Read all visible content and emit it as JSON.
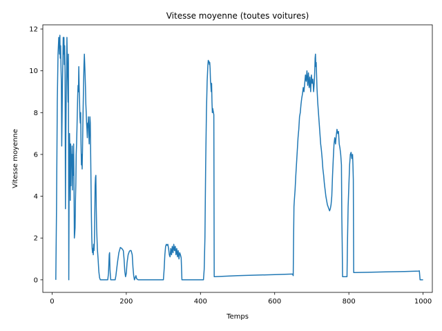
{
  "chart_data": {
    "type": "line",
    "title": "Vitesse moyenne (toutes voitures)",
    "xlabel": "Temps",
    "ylabel": "Vitesse moyenne",
    "xlim": [
      -25,
      1025
    ],
    "ylim": [
      -0.6,
      12.2
    ],
    "x_ticks": [
      0,
      200,
      400,
      600,
      800,
      1000
    ],
    "x_tick_labels": [
      "0",
      "200",
      "400",
      "600",
      "800",
      "1000"
    ],
    "y_ticks": [
      0,
      2,
      4,
      6,
      8,
      10,
      12
    ],
    "y_tick_labels": [
      "0",
      "2",
      "4",
      "6",
      "8",
      "10",
      "12"
    ],
    "grid": false,
    "line_color": "#1f77b4",
    "series": [
      {
        "points": [
          [
            10,
            0.0
          ],
          [
            12,
            3.5
          ],
          [
            14,
            8.5
          ],
          [
            16,
            10.8
          ],
          [
            18,
            11.6
          ],
          [
            19,
            11.5
          ],
          [
            20,
            10.8
          ],
          [
            21,
            11.7
          ],
          [
            22,
            10.6
          ],
          [
            23,
            11.2
          ],
          [
            24,
            10.2
          ],
          [
            25,
            9.4
          ],
          [
            26,
            6.4
          ],
          [
            27,
            7.8
          ],
          [
            28,
            9.5
          ],
          [
            29,
            10.5
          ],
          [
            30,
            11.6
          ],
          [
            31,
            10.8
          ],
          [
            32,
            11.6
          ],
          [
            33,
            10.3
          ],
          [
            34,
            11.2
          ],
          [
            35,
            9.8
          ],
          [
            36,
            3.4
          ],
          [
            37,
            6.5
          ],
          [
            38,
            8.5
          ],
          [
            39,
            9.8
          ],
          [
            40,
            11.6
          ],
          [
            41,
            10.4
          ],
          [
            42,
            9.5
          ],
          [
            43,
            8.5
          ],
          [
            44,
            10.8
          ],
          [
            45,
            0.0
          ],
          [
            46,
            5.0
          ],
          [
            47,
            7.0
          ],
          [
            48,
            6.0
          ],
          [
            49,
            3.8
          ],
          [
            50,
            6.5
          ],
          [
            51,
            4.5
          ],
          [
            52,
            6.0
          ],
          [
            53,
            5.5
          ],
          [
            54,
            6.4
          ],
          [
            55,
            4.3
          ],
          [
            56,
            6.0
          ],
          [
            57,
            5.0
          ],
          [
            58,
            6.5
          ],
          [
            59,
            4.8
          ],
          [
            60,
            2.0
          ],
          [
            61,
            2.2
          ],
          [
            62,
            2.5
          ],
          [
            63,
            3.8
          ],
          [
            64,
            4.6
          ],
          [
            65,
            6.0
          ],
          [
            66,
            6.5
          ],
          [
            67,
            7.2
          ],
          [
            68,
            8.0
          ],
          [
            69,
            8.8
          ],
          [
            70,
            9.3
          ],
          [
            71,
            9.0
          ],
          [
            72,
            10.2
          ],
          [
            73,
            9.2
          ],
          [
            74,
            8.6
          ],
          [
            75,
            7.8
          ],
          [
            76,
            7.5
          ],
          [
            77,
            8.0
          ],
          [
            78,
            6.5
          ],
          [
            79,
            5.5
          ],
          [
            80,
            6.0
          ],
          [
            81,
            5.3
          ],
          [
            82,
            6.2
          ],
          [
            83,
            7.5
          ],
          [
            84,
            8.5
          ],
          [
            85,
            9.5
          ],
          [
            86,
            10.3
          ],
          [
            87,
            10.8
          ],
          [
            88,
            10.3
          ],
          [
            89,
            9.8
          ],
          [
            90,
            9.2
          ],
          [
            91,
            8.4
          ],
          [
            92,
            8.0
          ],
          [
            93,
            7.5
          ],
          [
            94,
            7.2
          ],
          [
            95,
            6.8
          ],
          [
            96,
            7.5
          ],
          [
            97,
            7.3
          ],
          [
            98,
            7.8
          ],
          [
            99,
            7.0
          ],
          [
            100,
            6.5
          ],
          [
            101,
            7.2
          ],
          [
            102,
            7.8
          ],
          [
            103,
            7.5
          ],
          [
            104,
            6.0
          ],
          [
            105,
            4.5
          ],
          [
            106,
            3.0
          ],
          [
            107,
            2.0
          ],
          [
            108,
            1.5
          ],
          [
            109,
            1.3
          ],
          [
            110,
            1.5
          ],
          [
            111,
            1.2
          ],
          [
            112,
            1.7
          ],
          [
            113,
            1.4
          ],
          [
            114,
            1.8
          ],
          [
            115,
            3.0
          ],
          [
            116,
            4.5
          ],
          [
            117,
            4.9
          ],
          [
            118,
            5.0
          ],
          [
            119,
            3.5
          ],
          [
            120,
            2.5
          ],
          [
            121,
            2.0
          ],
          [
            122,
            1.5
          ],
          [
            124,
            1.0
          ],
          [
            126,
            0.4
          ],
          [
            128,
            0.1
          ],
          [
            130,
            0.0
          ],
          [
            140,
            0.0
          ],
          [
            150,
            0.0
          ],
          [
            152,
            0.3
          ],
          [
            154,
            1.2
          ],
          [
            155,
            1.3
          ],
          [
            156,
            0.5
          ],
          [
            158,
            0.0
          ],
          [
            170,
            0.0
          ],
          [
            172,
            0.2
          ],
          [
            176,
            0.8
          ],
          [
            180,
            1.3
          ],
          [
            184,
            1.55
          ],
          [
            188,
            1.5
          ],
          [
            192,
            1.4
          ],
          [
            194,
            1.0
          ],
          [
            196,
            0.4
          ],
          [
            198,
            0.15
          ],
          [
            200,
            0.3
          ],
          [
            202,
            0.8
          ],
          [
            205,
            1.2
          ],
          [
            208,
            1.35
          ],
          [
            210,
            1.4
          ],
          [
            213,
            1.4
          ],
          [
            216,
            1.2
          ],
          [
            218,
            0.6
          ],
          [
            220,
            0.2
          ],
          [
            222,
            0.0
          ],
          [
            224,
            0.1
          ],
          [
            226,
            0.2
          ],
          [
            228,
            0.05
          ],
          [
            232,
            0.0
          ],
          [
            260,
            0.0
          ],
          [
            300,
            0.0
          ],
          [
            302,
            0.5
          ],
          [
            304,
            1.2
          ],
          [
            306,
            1.6
          ],
          [
            308,
            1.7
          ],
          [
            310,
            1.65
          ],
          [
            312,
            1.7
          ],
          [
            314,
            1.5
          ],
          [
            316,
            1.2
          ],
          [
            318,
            1.1
          ],
          [
            320,
            1.5
          ],
          [
            322,
            1.2
          ],
          [
            324,
            1.6
          ],
          [
            326,
            1.3
          ],
          [
            328,
            1.7
          ],
          [
            330,
            1.4
          ],
          [
            332,
            1.6
          ],
          [
            334,
            1.2
          ],
          [
            336,
            1.5
          ],
          [
            338,
            1.1
          ],
          [
            340,
            1.4
          ],
          [
            342,
            1.0
          ],
          [
            344,
            1.3
          ],
          [
            346,
            1.2
          ],
          [
            348,
            1.05
          ],
          [
            350,
            0.0
          ],
          [
            380,
            0.0
          ],
          [
            408,
            0.0
          ],
          [
            410,
            0.5
          ],
          [
            412,
            2.0
          ],
          [
            414,
            5.5
          ],
          [
            416,
            8.0
          ],
          [
            418,
            9.5
          ],
          [
            420,
            10.3
          ],
          [
            421,
            10.5
          ],
          [
            422,
            10.4
          ],
          [
            423,
            10.45
          ],
          [
            424,
            10.3
          ],
          [
            425,
            10.4
          ],
          [
            426,
            10.1
          ],
          [
            427,
            9.5
          ],
          [
            428,
            9.3
          ],
          [
            429,
            9.0
          ],
          [
            430,
            9.4
          ],
          [
            431,
            8.5
          ],
          [
            432,
            8.0
          ],
          [
            433,
            8.2
          ],
          [
            434,
            8.1
          ],
          [
            435,
            8.0
          ],
          [
            436,
            7.9
          ],
          [
            437,
            0.15
          ],
          [
            500,
            0.2
          ],
          [
            600,
            0.25
          ],
          [
            648,
            0.28
          ],
          [
            650,
            0.2
          ],
          [
            651,
            2.0
          ],
          [
            652,
            3.5
          ],
          [
            653,
            3.8
          ],
          [
            655,
            4.3
          ],
          [
            657,
            5.0
          ],
          [
            659,
            5.6
          ],
          [
            661,
            6.2
          ],
          [
            663,
            6.8
          ],
          [
            665,
            7.2
          ],
          [
            667,
            7.8
          ],
          [
            669,
            8.0
          ],
          [
            671,
            8.4
          ],
          [
            673,
            8.7
          ],
          [
            675,
            8.9
          ],
          [
            677,
            9.2
          ],
          [
            679,
            9.0
          ],
          [
            681,
            9.4
          ],
          [
            683,
            9.8
          ],
          [
            685,
            9.5
          ],
          [
            687,
            10.0
          ],
          [
            689,
            9.3
          ],
          [
            691,
            9.9
          ],
          [
            693,
            9.2
          ],
          [
            695,
            9.7
          ],
          [
            697,
            9.0
          ],
          [
            699,
            9.8
          ],
          [
            701,
            9.4
          ],
          [
            703,
            9.6
          ],
          [
            705,
            9.0
          ],
          [
            707,
            9.5
          ],
          [
            708,
            10.0
          ],
          [
            709,
            10.6
          ],
          [
            710,
            10.8
          ],
          [
            711,
            10.2
          ],
          [
            712,
            10.4
          ],
          [
            713,
            9.8
          ],
          [
            714,
            9.2
          ],
          [
            716,
            8.5
          ],
          [
            718,
            8.0
          ],
          [
            720,
            7.5
          ],
          [
            722,
            7.0
          ],
          [
            724,
            6.5
          ],
          [
            726,
            6.2
          ],
          [
            728,
            5.8
          ],
          [
            730,
            5.3
          ],
          [
            732,
            5.0
          ],
          [
            734,
            4.6
          ],
          [
            736,
            4.3
          ],
          [
            738,
            4.0
          ],
          [
            740,
            3.8
          ],
          [
            742,
            3.6
          ],
          [
            744,
            3.5
          ],
          [
            746,
            3.4
          ],
          [
            748,
            3.3
          ],
          [
            750,
            3.4
          ],
          [
            752,
            3.6
          ],
          [
            754,
            4.0
          ],
          [
            756,
            5.0
          ],
          [
            758,
            5.8
          ],
          [
            760,
            6.5
          ],
          [
            762,
            6.8
          ],
          [
            764,
            6.5
          ],
          [
            766,
            6.9
          ],
          [
            768,
            7.2
          ],
          [
            770,
            7.0
          ],
          [
            772,
            7.1
          ],
          [
            774,
            6.5
          ],
          [
            776,
            6.3
          ],
          [
            778,
            6.0
          ],
          [
            780,
            5.5
          ],
          [
            781,
            3.0
          ],
          [
            782,
            1.8
          ],
          [
            783,
            0.15
          ],
          [
            795,
            0.15
          ],
          [
            796,
            1.5
          ],
          [
            798,
            3.5
          ],
          [
            800,
            4.5
          ],
          [
            802,
            5.5
          ],
          [
            804,
            6.0
          ],
          [
            806,
            6.1
          ],
          [
            808,
            5.8
          ],
          [
            810,
            6.0
          ],
          [
            811,
            5.5
          ],
          [
            812,
            4.8
          ],
          [
            813,
            0.35
          ],
          [
            850,
            0.36
          ],
          [
            900,
            0.38
          ],
          [
            950,
            0.4
          ],
          [
            988,
            0.42
          ],
          [
            990,
            0.43
          ],
          [
            992,
            0.0
          ],
          [
            1000,
            0.0
          ]
        ]
      }
    ]
  }
}
